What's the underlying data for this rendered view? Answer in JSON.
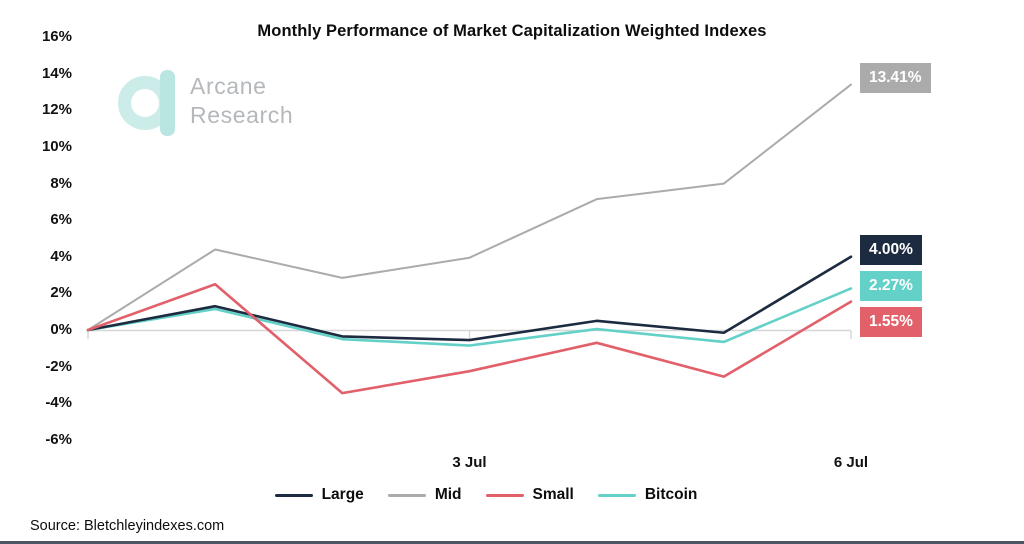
{
  "title": "Monthly Performance of Market Capitalization Weighted Indexes",
  "logo": {
    "line1": "Arcane",
    "line2": "Research"
  },
  "source": "Source: Bletchleyindexes.com",
  "colors": {
    "large": "#1c2b40",
    "mid": "#ababab",
    "small": "#e2606a",
    "bitcoin": "#63d1c8",
    "axis": "#d6d6d6",
    "logo_ring": "#cbece8",
    "logo_bar": "#b9e6e1",
    "bottom_rule": "#4d5663"
  },
  "chart_data": {
    "type": "line",
    "title": "Monthly Performance of Market Capitalization Weighted Indexes",
    "xlabel": "",
    "ylabel": "",
    "grid": false,
    "legend_position": "bottom",
    "num_points": 7,
    "y_ticks": [
      16,
      14,
      12,
      10,
      8,
      6,
      4,
      2,
      0,
      -2,
      -4,
      -6
    ],
    "y_tick_suffix": "%",
    "ylim": [
      -7,
      17
    ],
    "x_tick_labels": [
      {
        "index": 3,
        "label": "3 Jul"
      },
      {
        "index": 6,
        "label": "6 Jul"
      }
    ],
    "axis_tick_indices": [
      0,
      3,
      6
    ],
    "series": [
      {
        "name": "Large",
        "color": "#1c2b40",
        "values": [
          0,
          1.3,
          -0.35,
          -0.55,
          0.5,
          -0.15,
          4.0
        ],
        "end_label": "4.00%"
      },
      {
        "name": "Mid",
        "color": "#ababab",
        "values": [
          0,
          4.4,
          2.85,
          3.95,
          7.15,
          8.0,
          13.41
        ],
        "end_label": "13.41%"
      },
      {
        "name": "Small",
        "color": "#e2606a",
        "values": [
          0,
          2.5,
          -3.45,
          -2.25,
          -0.7,
          -2.55,
          1.55
        ],
        "end_label": "1.55%"
      },
      {
        "name": "Bitcoin",
        "color": "#63d1c8",
        "values": [
          0,
          1.15,
          -0.5,
          -0.85,
          0.05,
          -0.65,
          2.27
        ],
        "end_label": "2.27%"
      }
    ]
  }
}
